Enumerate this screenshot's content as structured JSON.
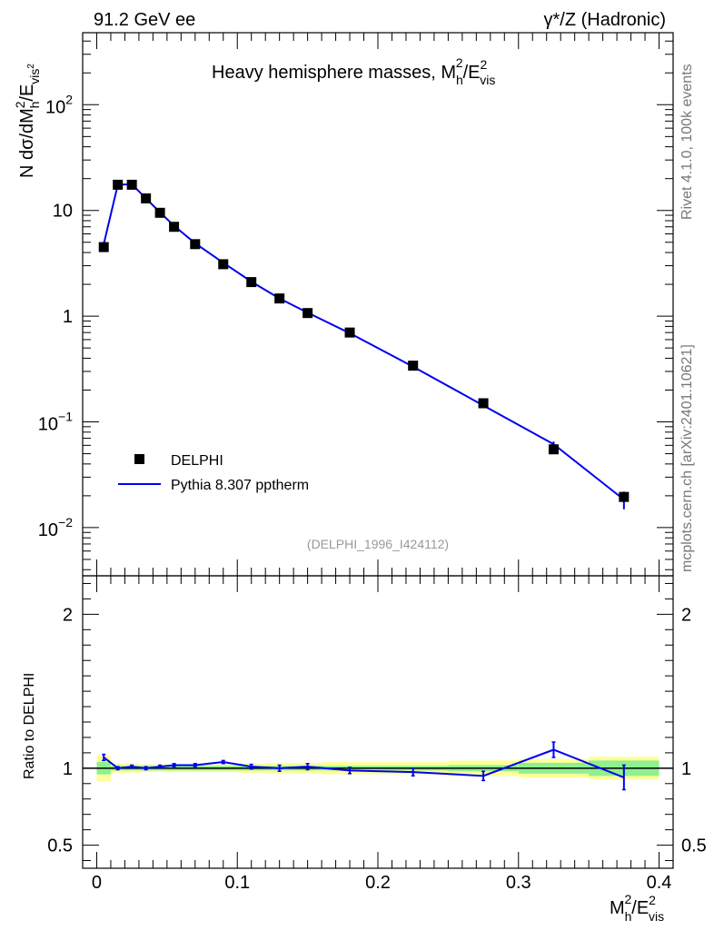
{
  "header": {
    "energy_label": "91.2 GeV ee",
    "process_label": "γ*/Z (Hadronic)"
  },
  "side": {
    "rivet_label": "Rivet 4.1.0,  100k events",
    "site_label": "mcplots.cern.ch [arXiv:2401.10621]"
  },
  "chart_data": {
    "type": "line",
    "title": "Heavy hemisphere masses, M²h/E²vis",
    "title_parts": {
      "main": "Heavy hemisphere masses, M",
      "sup": "2",
      "sub": "h",
      "tail_main": "/E",
      "tail_sup": "2",
      "tail_sub": "vis"
    },
    "analysis_id": "(DELPHI_1996_I424112)",
    "xlabel": "M²h/E²vis",
    "xlabel_parts": {
      "main": "M",
      "sup": "2",
      "sub": "h",
      "tail_main": "/E",
      "tail_sup": "2",
      "tail_sub": "vis"
    },
    "ylabel": "N  dσ/dM²h/E²vis²",
    "ylabel_parts": {
      "prefix": "N   dσ/dM",
      "sup": "2",
      "sub": "h",
      "mid": "/E",
      "sub2": "vis",
      "sup2": "2"
    },
    "ratio_ylabel": "Ratio to DELPHI",
    "xlim": [
      -0.01,
      0.41
    ],
    "ylim": [
      0.0035,
      480
    ],
    "ratio_ylim": [
      0.35,
      2.25
    ],
    "x_ticks": [
      "0",
      "0.1",
      "0.2",
      "0.3",
      "0.4"
    ],
    "x_tick_values": [
      0,
      0.1,
      0.2,
      0.3,
      0.4
    ],
    "y_ticks": [
      {
        "value": 100,
        "base": "10",
        "exp": "2"
      },
      {
        "value": 10,
        "base": "10",
        "exp": ""
      },
      {
        "value": 1,
        "base": "1",
        "exp": ""
      },
      {
        "value": 0.1,
        "base": "10",
        "exp": "−1"
      },
      {
        "value": 0.01,
        "base": "10",
        "exp": "−2"
      }
    ],
    "ratio_ticks": [
      "0.5",
      "1",
      "2"
    ],
    "ratio_tick_values": [
      0.5,
      1,
      2
    ],
    "legend": {
      "position": "lower-left",
      "entries": [
        "DELPHI",
        "Pythia 8.307 pptherm"
      ]
    },
    "series": [
      {
        "name": "DELPHI",
        "style": "markers",
        "color": "#000000",
        "x": [
          0.005,
          0.015,
          0.025,
          0.035,
          0.045,
          0.055,
          0.07,
          0.09,
          0.11,
          0.13,
          0.15,
          0.18,
          0.225,
          0.275,
          0.325,
          0.375
        ],
        "values": [
          4.5,
          17.5,
          17.5,
          13.0,
          9.5,
          7.0,
          4.8,
          3.1,
          2.1,
          1.47,
          1.07,
          0.7,
          0.34,
          0.15,
          0.055,
          0.0195
        ],
        "band_lo": [
          0.0,
          0.01,
          0.02,
          0.03,
          0.04,
          0.05,
          0.06,
          0.08,
          0.1,
          0.12,
          0.14,
          0.16,
          0.2,
          0.25,
          0.3,
          0.35
        ],
        "band_hi": [
          0.01,
          0.02,
          0.03,
          0.04,
          0.05,
          0.06,
          0.08,
          0.1,
          0.12,
          0.14,
          0.16,
          0.2,
          0.25,
          0.3,
          0.35,
          0.4
        ],
        "stat_rel": [
          0.04,
          0.015,
          0.015,
          0.015,
          0.015,
          0.015,
          0.015,
          0.015,
          0.015,
          0.015,
          0.015,
          0.015,
          0.015,
          0.02,
          0.035,
          0.05
        ],
        "total_rel": [
          0.085,
          0.03,
          0.03,
          0.025,
          0.025,
          0.025,
          0.025,
          0.025,
          0.03,
          0.035,
          0.035,
          0.04,
          0.04,
          0.05,
          0.06,
          0.075
        ]
      },
      {
        "name": "Pythia 8.307 pptherm",
        "style": "line",
        "color": "#0000ee",
        "x": [
          0.005,
          0.015,
          0.025,
          0.035,
          0.045,
          0.055,
          0.07,
          0.09,
          0.11,
          0.13,
          0.15,
          0.18,
          0.225,
          0.275,
          0.325,
          0.375
        ],
        "values": [
          4.8,
          17.5,
          17.7,
          13.0,
          9.6,
          7.15,
          4.9,
          3.2,
          2.12,
          1.47,
          1.08,
          0.69,
          0.333,
          0.143,
          0.0615,
          0.0184
        ],
        "errors": [
          0.05,
          0.05,
          0.05,
          0.08,
          0.07,
          0.06,
          0.06,
          0.05,
          0.05,
          0.04,
          0.04,
          0.035,
          0.03,
          0.03,
          0.06,
          0.19
        ],
        "ratio": [
          1.07,
          1.0,
          1.01,
          1.0,
          1.01,
          1.02,
          1.02,
          1.04,
          1.01,
          1.0,
          1.01,
          0.985,
          0.975,
          0.95,
          1.12,
          0.94
        ],
        "ratio_err": [
          0.02,
          0.01,
          0.01,
          0.01,
          0.01,
          0.01,
          0.01,
          0.01,
          0.015,
          0.02,
          0.02,
          0.02,
          0.025,
          0.03,
          0.05,
          0.08
        ]
      }
    ],
    "colors": {
      "band_inner": "#8ef08e",
      "band_outer": "#ffff99",
      "reference_line": "#000000"
    }
  }
}
